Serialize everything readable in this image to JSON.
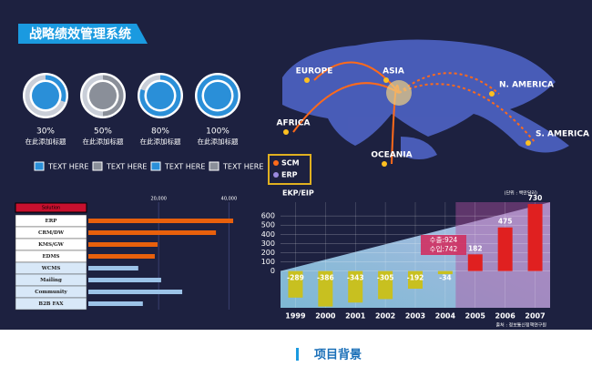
{
  "title": "战略绩效管理系统",
  "gauges": {
    "values": [
      30,
      50,
      80,
      100
    ],
    "value_labels": [
      "30%",
      "50%",
      "80%",
      "100%"
    ],
    "captions": [
      "在此添加标题",
      "在此添加标题",
      "在此添加标题",
      "在此添加标题"
    ],
    "colors": [
      "#2a8fd8",
      "#8a8f99",
      "#2a8fd8",
      "#2a8fd8"
    ]
  },
  "legend": [
    "TEXT HERE",
    "TEXT HERE",
    "TEXT HERE",
    "TEXT HERE"
  ],
  "map": {
    "regions": [
      "EUROPE",
      "ASIA",
      "AFRICA",
      "OCEANIA",
      "N. AMERICA",
      "S. AMERICA"
    ],
    "legend": [
      "SCM",
      "ERP"
    ],
    "caption": "EKP/EIP"
  },
  "bar_table": {
    "header": "Solution",
    "categories": [
      "ERP",
      "CRM/DW",
      "KMS/GW",
      "EDMS",
      "WCMS",
      "Mailing",
      "Community",
      "B2B FAX"
    ],
    "values": [
      41200,
      36300,
      19700,
      18900,
      14200,
      20700,
      26700,
      15500
    ],
    "colors": [
      "#e8600c",
      "#e8600c",
      "#e8600c",
      "#e8600c",
      "#9cc3e8",
      "#9cc3e8",
      "#9cc3e8",
      "#9cc3e8"
    ],
    "xlim": [
      0,
      50000
    ],
    "xticks": [
      {
        "value": 20000,
        "label": "20,000"
      },
      {
        "value": 40000,
        "label": "40,000"
      }
    ]
  },
  "column_chart": {
    "unit": "(단위 : 백만달러)",
    "categories": [
      "1999",
      "2000",
      "2001",
      "2002",
      "2003",
      "2004",
      "2005",
      "2006",
      "2007"
    ],
    "values": [
      -289,
      -386,
      -343,
      -305,
      -192,
      -34,
      182,
      475,
      730
    ],
    "ylim": [
      -400,
      750
    ],
    "yticks": [
      0,
      100,
      200,
      300,
      400,
      500,
      600
    ],
    "annotation": [
      "수출:924",
      "수입:742"
    ],
    "source": "출처 : 정보통신정책연구원"
  },
  "footer": {
    "title": "项目背景"
  }
}
